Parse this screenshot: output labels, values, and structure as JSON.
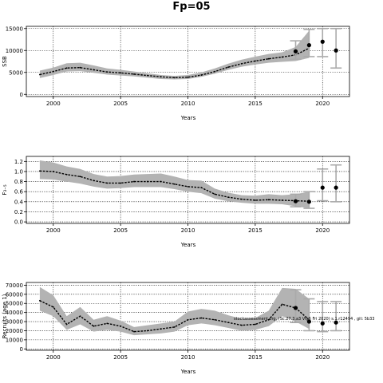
{
  "title": "Fp=05",
  "chart_data": [
    {
      "type": "line",
      "ylabel": "SSB",
      "xlabel": "Years",
      "xlim": [
        1998,
        2022
      ],
      "ylim": [
        -500,
        15500
      ],
      "xticks": [
        2000,
        2005,
        2010,
        2015,
        2020
      ],
      "xtick_labels": [
        "2000",
        "2005",
        "2010",
        "2015",
        "2020"
      ],
      "yticks": [
        0,
        5000,
        10000,
        15000
      ],
      "ytick_labels": [
        "0",
        "5000",
        "10000",
        "15000"
      ],
      "grid": true,
      "series": [
        {
          "role": "median",
          "x": [
            1999,
            2000,
            2001,
            2002,
            2003,
            2004,
            2005,
            2006,
            2007,
            2008,
            2009,
            2010,
            2011,
            2012,
            2013,
            2014,
            2015,
            2016,
            2017,
            2018,
            2019
          ],
          "y": [
            4500,
            5200,
            6000,
            6100,
            5600,
            5100,
            4900,
            4600,
            4300,
            4000,
            3800,
            3900,
            4400,
            5200,
            6200,
            7000,
            7600,
            8100,
            8500,
            9000,
            10500
          ],
          "lower": [
            3700,
            4400,
            5200,
            5300,
            4900,
            4500,
            4300,
            4100,
            3800,
            3500,
            3400,
            3500,
            4000,
            4700,
            5600,
            6300,
            6800,
            7200,
            7400,
            7600,
            8300
          ],
          "upper": [
            5400,
            6100,
            7100,
            7200,
            6600,
            5900,
            5600,
            5200,
            4800,
            4400,
            4200,
            4400,
            5000,
            5900,
            7000,
            7900,
            8600,
            9200,
            9600,
            10800,
            14500
          ]
        }
      ],
      "points": [
        {
          "x": 2018,
          "y": 9800,
          "lower": 8000,
          "upper": 12200
        },
        {
          "x": 2019,
          "y": 11200,
          "lower": 8600,
          "upper": 14800
        },
        {
          "x": 2020,
          "y": 12000,
          "lower": 8600,
          "upper": 15000
        },
        {
          "x": 2021,
          "y": 10000,
          "lower": 6000,
          "upper": 15000
        }
      ]
    },
    {
      "type": "line",
      "ylabel": "F₃₋₅",
      "xlabel": "Years",
      "xlim": [
        1998,
        2022
      ],
      "ylim": [
        -0.03,
        1.3
      ],
      "xticks": [
        2000,
        2005,
        2010,
        2015,
        2020
      ],
      "xtick_labels": [
        "2000",
        "2005",
        "2010",
        "2015",
        "2020"
      ],
      "yticks": [
        0.0,
        0.2,
        0.4,
        0.6,
        0.8,
        1.0,
        1.2
      ],
      "ytick_labels": [
        "0.0",
        "0.2",
        "0.4",
        "0.6",
        "0.8",
        "1.0",
        "1.2"
      ],
      "grid": true,
      "series": [
        {
          "role": "median",
          "x": [
            1999,
            2000,
            2001,
            2002,
            2003,
            2004,
            2005,
            2006,
            2007,
            2008,
            2009,
            2010,
            2011,
            2012,
            2013,
            2014,
            2015,
            2016,
            2017,
            2018,
            2019
          ],
          "y": [
            1.01,
            1.0,
            0.94,
            0.9,
            0.82,
            0.77,
            0.77,
            0.8,
            0.8,
            0.8,
            0.75,
            0.7,
            0.68,
            0.55,
            0.49,
            0.45,
            0.43,
            0.44,
            0.43,
            0.42,
            0.41
          ],
          "lower": [
            0.85,
            0.84,
            0.8,
            0.76,
            0.7,
            0.66,
            0.67,
            0.69,
            0.69,
            0.69,
            0.65,
            0.6,
            0.57,
            0.46,
            0.41,
            0.38,
            0.36,
            0.36,
            0.35,
            0.31,
            0.27
          ],
          "upper": [
            1.22,
            1.18,
            1.1,
            1.05,
            0.95,
            0.9,
            0.91,
            0.94,
            0.95,
            0.96,
            0.9,
            0.83,
            0.82,
            0.66,
            0.58,
            0.53,
            0.52,
            0.55,
            0.53,
            0.55,
            0.6
          ]
        }
      ],
      "points": [
        {
          "x": 2018,
          "y": 0.41,
          "lower": 0.3,
          "upper": 0.55
        },
        {
          "x": 2019,
          "y": 0.4,
          "lower": 0.27,
          "upper": 0.6
        },
        {
          "x": 2020,
          "y": 0.68,
          "lower": 0.42,
          "upper": 1.05
        },
        {
          "x": 2021,
          "y": 0.68,
          "lower": 0.4,
          "upper": 1.13
        }
      ]
    },
    {
      "type": "line",
      "ylabel": "Recruits (age 1)",
      "xlabel": "Years",
      "xlim": [
        1998,
        2022
      ],
      "ylim": [
        -1500,
        73000
      ],
      "xticks": [
        2000,
        2005,
        2010,
        2015,
        2020
      ],
      "xtick_labels": [
        "2000",
        "2005",
        "2010",
        "2015",
        "2020"
      ],
      "yticks": [
        0,
        10000,
        20000,
        30000,
        40000,
        50000,
        60000,
        70000
      ],
      "ytick_labels": [
        "0",
        "10000",
        "20000",
        "30000",
        "40000",
        "50000",
        "60000",
        "70000"
      ],
      "grid": true,
      "series": [
        {
          "role": "median",
          "x": [
            1999,
            2000,
            2001,
            2002,
            2003,
            2004,
            2005,
            2006,
            2007,
            2008,
            2009,
            2010,
            2011,
            2012,
            2013,
            2014,
            2015,
            2016,
            2017,
            2018,
            2019
          ],
          "y": [
            53000,
            46000,
            27000,
            36000,
            25000,
            28000,
            25000,
            19000,
            20000,
            22000,
            24000,
            32000,
            34000,
            32000,
            29000,
            26000,
            27000,
            32000,
            49000,
            45000,
            32000
          ],
          "lower": [
            42000,
            36000,
            21000,
            27000,
            19000,
            21000,
            19000,
            15000,
            16000,
            17000,
            19000,
            26000,
            28000,
            26000,
            23000,
            20000,
            21000,
            25000,
            36000,
            30000,
            22000
          ],
          "upper": [
            68000,
            59000,
            36000,
            46000,
            32000,
            36000,
            31000,
            24000,
            26000,
            28000,
            30000,
            41000,
            44000,
            42000,
            37000,
            33000,
            34000,
            42000,
            67000,
            66000,
            55000
          ]
        }
      ],
      "points": [
        {
          "x": 2018,
          "y": 45000,
          "lower": 29000,
          "upper": 65000
        },
        {
          "x": 2019,
          "y": 30000,
          "lower": 20000,
          "upper": 55000
        },
        {
          "x": 2020,
          "y": 28000,
          "lower": 19000,
          "upper": 52000
        },
        {
          "x": 2021,
          "y": 29000,
          "lower": 20000,
          "upper": 52000
        }
      ],
      "annotation": "stockassessment.org, (Sc.27.3.a3 Vig6 Fri 2020) s.1.r12494 , git: 5b33"
    }
  ]
}
